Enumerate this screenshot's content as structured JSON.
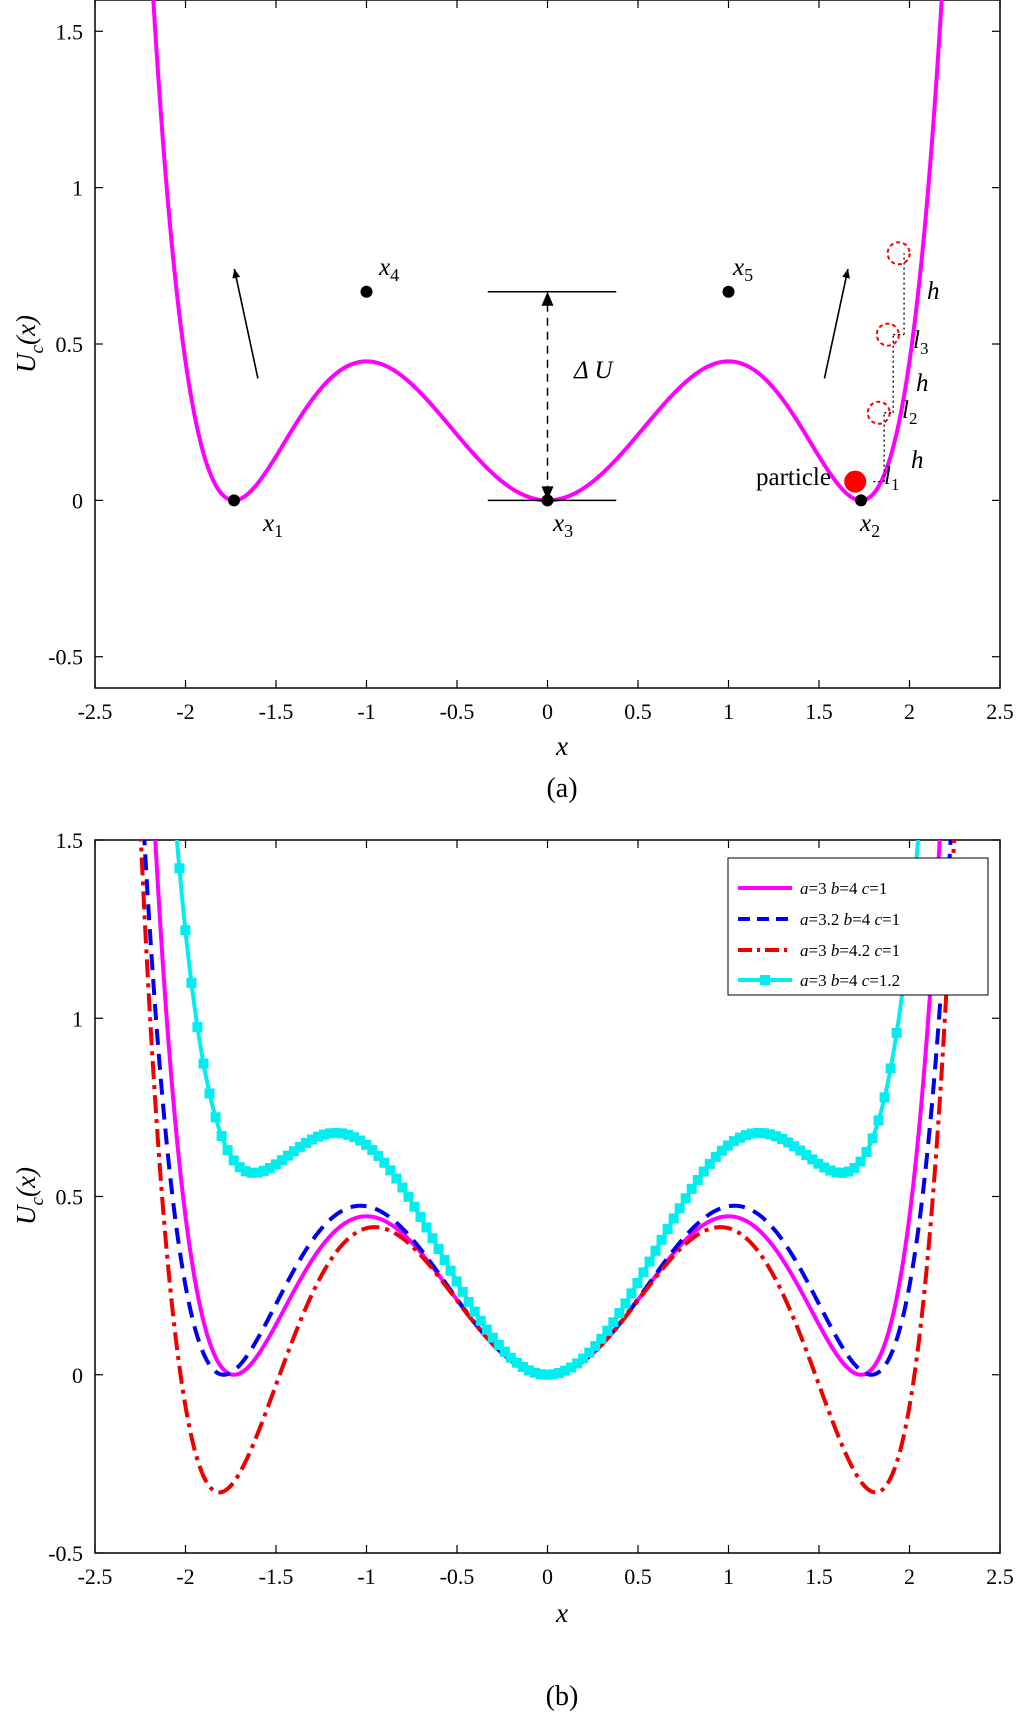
{
  "panels": [
    {
      "caption": "(a)",
      "annotations": {
        "x1": {
          "base": "x",
          "sub": "1"
        },
        "x2": {
          "base": "x",
          "sub": "2"
        },
        "x3": {
          "base": "x",
          "sub": "3"
        },
        "x4": {
          "base": "x",
          "sub": "4"
        },
        "x5": {
          "base": "x",
          "sub": "5"
        },
        "delta_u": "Δ U",
        "particle": "particle",
        "h": "h",
        "l1": {
          "base": "l",
          "sub": "1"
        },
        "l2": {
          "base": "l",
          "sub": "2"
        },
        "l3": {
          "base": "l",
          "sub": "3"
        }
      }
    },
    {
      "caption": "(b)"
    }
  ],
  "chart_data": [
    {
      "type": "line",
      "title": "",
      "xlabel": "x",
      "ylabel": {
        "base": "U",
        "sub": "c",
        "tail": "(x)"
      },
      "xlim": [
        -2.5,
        2.5
      ],
      "ylim": [
        -0.6,
        1.6
      ],
      "xticks": [
        -2.5,
        -2,
        -1.5,
        -1,
        -0.5,
        0,
        0.5,
        1,
        1.5,
        2,
        2.5
      ],
      "xtick_labels": [
        "-2.5",
        "-2",
        "-1.5",
        "-1",
        "-0.5",
        "0",
        "0.5",
        "1",
        "1.5",
        "2",
        "2.5"
      ],
      "yticks": [
        -0.5,
        0,
        0.5,
        1,
        1.5
      ],
      "ytick_labels": [
        "-0.5",
        "0",
        "0.5",
        "1",
        "1.5"
      ],
      "grid": false,
      "series": [
        {
          "a": 3,
          "b": 4,
          "c": 1,
          "color": "#ff00ff",
          "style": "solid"
        }
      ],
      "points": [
        {
          "label": "x1",
          "x": -1.732,
          "y": 0
        },
        {
          "label": "x2",
          "x": 1.732,
          "y": 0
        },
        {
          "label": "x3",
          "x": 0,
          "y": 0
        },
        {
          "label": "x4",
          "x": -1,
          "y": 0.667
        },
        {
          "label": "x5",
          "x": 1,
          "y": 0.667
        }
      ],
      "particle": {
        "x": 1.7,
        "y": 0.06,
        "color": "#ff0000"
      },
      "ghost_positions": [
        {
          "x": 1.83,
          "y": 0.28
        },
        {
          "x": 1.88,
          "y": 0.53
        },
        {
          "x": 1.94,
          "y": 0.79
        }
      ],
      "arrows": [
        {
          "from": [
            -1.6,
            0.39
          ],
          "to": [
            -1.73,
            0.74
          ]
        },
        {
          "from": [
            1.53,
            0.39
          ],
          "to": [
            1.66,
            0.74
          ]
        }
      ],
      "delta_u": {
        "x": 0,
        "y_low": 0,
        "y_high": 0.667,
        "line_x": [
          -0.33,
          0.38
        ]
      }
    },
    {
      "type": "line",
      "title": "",
      "xlabel": "x",
      "ylabel": {
        "base": "U",
        "sub": "c",
        "tail": "(x)"
      },
      "xlim": [
        -2.5,
        2.5
      ],
      "ylim": [
        -0.5,
        1.5
      ],
      "xticks": [
        -2.5,
        -2,
        -1.5,
        -1,
        -0.5,
        0,
        0.5,
        1,
        1.5,
        2,
        2.5
      ],
      "xtick_labels": [
        "-2.5",
        "-2",
        "-1.5",
        "-1",
        "-0.5",
        "0",
        "0.5",
        "1",
        "1.5",
        "2",
        "2.5"
      ],
      "yticks": [
        -0.5,
        0,
        0.5,
        1,
        1.5
      ],
      "ytick_labels": [
        "-0.5",
        "0",
        "0.5",
        "1",
        "1.5"
      ],
      "grid": false,
      "legend": "top-right",
      "series": [
        {
          "name": {
            "a": "3",
            "b": "4",
            "c": "1"
          },
          "a": 3,
          "b": 4,
          "c": 1,
          "color": "#ff00ff",
          "style": "solid"
        },
        {
          "name": {
            "a": "3.2",
            "b": "4",
            "c": "1"
          },
          "a": 3.2,
          "b": 4,
          "c": 1,
          "color": "#0000ee",
          "style": "dashed"
        },
        {
          "name": {
            "a": "3",
            "b": "4.2",
            "c": "1"
          },
          "a": 3,
          "b": 4.2,
          "c": 1,
          "color": "#ee0000",
          "style": "dashdot"
        },
        {
          "name": {
            "a": "3",
            "b": "4",
            "c": "1.2"
          },
          "a": 3,
          "b": 4,
          "c": 1.2,
          "color": "#00eeee",
          "style": "solid-square"
        }
      ]
    }
  ]
}
